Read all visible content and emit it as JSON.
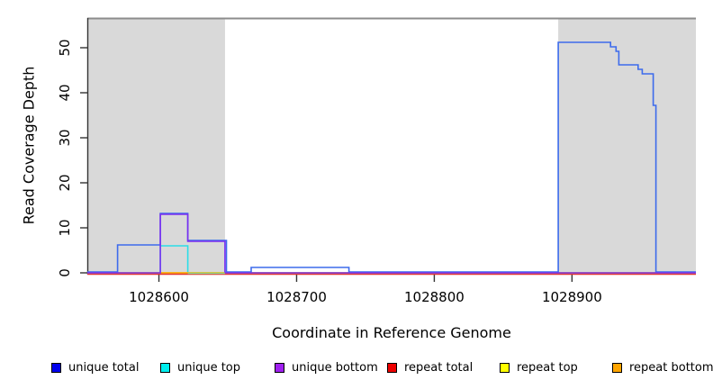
{
  "figure": {
    "x_axis_title": "Coordinate in Reference Genome",
    "y_axis_title": "Read Coverage Depth"
  },
  "legend": {
    "items": [
      {
        "label": "unique total",
        "color": "#0000EE"
      },
      {
        "label": "unique top",
        "color": "#00EEEE"
      },
      {
        "label": "unique bottom",
        "color": "#A020F0"
      },
      {
        "label": "repeat total",
        "color": "#EE0000"
      },
      {
        "label": "repeat top",
        "color": "#FFFF00"
      },
      {
        "label": "repeat bottom",
        "color": "#FFA500"
      }
    ]
  },
  "chart_data": {
    "type": "line",
    "step": true,
    "title": "",
    "xlabel": "Coordinate in Reference Genome",
    "ylabel": "Read Coverage Depth",
    "xlim": [
      1028548,
      1028990
    ],
    "ylim": [
      0,
      56.6
    ],
    "x_ticks": [
      1028600,
      1028700,
      1028800,
      1028900
    ],
    "y_ticks": [
      0,
      10,
      20,
      30,
      40,
      50
    ],
    "grid": false,
    "legend_position": "bottom",
    "shaded_regions": [
      {
        "from": 1028548,
        "to": 1028648,
        "color": "#D9D9D9"
      },
      {
        "from": 1028890,
        "to": 1028990,
        "color": "#D9D9D9"
      }
    ],
    "top_rule": {
      "color": "#8C8C8C",
      "note": "gray horizontal rule along top of plot box"
    },
    "series": [
      {
        "name": "unique top",
        "draw_color": "#2BDEE8",
        "steps": [
          [
            1028548,
            0
          ],
          [
            1028601,
            6
          ],
          [
            1028621,
            0
          ],
          [
            1028990,
            0
          ]
        ]
      },
      {
        "name": "repeat top",
        "draw_color": "#FFEE00",
        "steps": [
          [
            1028548,
            0
          ],
          [
            1028990,
            0
          ]
        ]
      },
      {
        "name": "repeat bottom",
        "draw_color": "#FFA500",
        "steps": [
          [
            1028548,
            0
          ],
          [
            1028990,
            0
          ]
        ]
      },
      {
        "name": "repeat total",
        "draw_color": "#E03535",
        "dy": 1.5,
        "steps": [
          [
            1028548,
            0
          ],
          [
            1028990,
            0
          ]
        ]
      },
      {
        "name": "unique total",
        "draw_color": "#3D6BEC",
        "dy": -1,
        "steps": [
          [
            1028548,
            0
          ],
          [
            1028570,
            6
          ],
          [
            1028601,
            13
          ],
          [
            1028621,
            7
          ],
          [
            1028649,
            0
          ],
          [
            1028667,
            1
          ],
          [
            1028738,
            0
          ],
          [
            1028890,
            51
          ],
          [
            1028928,
            50
          ],
          [
            1028932,
            49
          ],
          [
            1028934,
            46
          ],
          [
            1028948,
            45
          ],
          [
            1028951,
            44
          ],
          [
            1028959,
            37
          ],
          [
            1028961,
            0
          ],
          [
            1028990,
            0
          ]
        ]
      },
      {
        "name": "unique bottom",
        "draw_color": "#7B2FF0",
        "steps": [
          [
            1028548,
            0
          ],
          [
            1028601,
            13
          ],
          [
            1028621,
            7
          ],
          [
            1028648,
            0
          ],
          [
            1028990,
            0
          ]
        ]
      }
    ],
    "baseline_overlap_segments": [
      {
        "from": 1028621,
        "to": 1028648,
        "color": "#8FD98F",
        "note": "cyan+yellow lines overlapping at depth 0"
      }
    ]
  }
}
